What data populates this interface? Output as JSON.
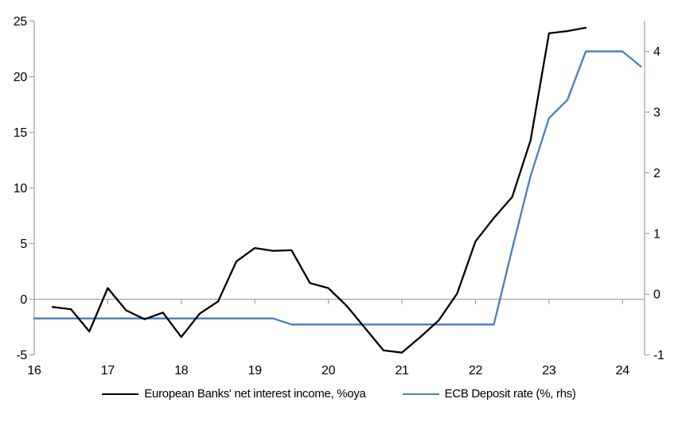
{
  "chart_data": {
    "type": "line",
    "legend_position": "bottom",
    "grid": "zero-line-only",
    "colors": {
      "axis": "#A6A6A6",
      "text": "#000000"
    },
    "x_axis": {
      "min": 16,
      "max": 24.3,
      "ticks": [
        16,
        17,
        18,
        19,
        20,
        21,
        22,
        23,
        24
      ]
    },
    "left_axis": {
      "min": -5,
      "max": 25,
      "ticks": [
        -5,
        0,
        5,
        10,
        15,
        20,
        25
      ]
    },
    "right_axis": {
      "min": -1,
      "max": 4.5,
      "ticks": [
        -1,
        0,
        1,
        2,
        3,
        4
      ]
    },
    "series": [
      {
        "id": "nii",
        "name": "European Banks' net interest income, %oya",
        "axis": "left",
        "color": "#000000",
        "points": [
          [
            16.25,
            -0.7
          ],
          [
            16.5,
            -0.9
          ],
          [
            16.75,
            -2.9
          ],
          [
            17.0,
            1.0
          ],
          [
            17.25,
            -1.0
          ],
          [
            17.5,
            -1.8
          ],
          [
            17.75,
            -1.2
          ],
          [
            18.0,
            -3.4
          ],
          [
            18.25,
            -1.3
          ],
          [
            18.5,
            -0.2
          ],
          [
            18.75,
            3.4
          ],
          [
            19.0,
            4.6
          ],
          [
            19.25,
            4.35
          ],
          [
            19.5,
            4.4
          ],
          [
            19.75,
            1.45
          ],
          [
            20.0,
            1.0
          ],
          [
            20.25,
            -0.6
          ],
          [
            20.5,
            -2.6
          ],
          [
            20.75,
            -4.6
          ],
          [
            21.0,
            -4.8
          ],
          [
            21.25,
            -3.4
          ],
          [
            21.5,
            -1.9
          ],
          [
            21.75,
            0.5
          ],
          [
            22.0,
            5.2
          ],
          [
            22.25,
            7.3
          ],
          [
            22.5,
            9.2
          ],
          [
            22.75,
            14.3
          ],
          [
            23.0,
            23.9
          ],
          [
            23.25,
            24.1
          ],
          [
            23.5,
            24.4
          ]
        ]
      },
      {
        "id": "ecb-deposit-rate",
        "name": "ECB Deposit rate (%, rhs)",
        "axis": "right",
        "color": "#4A7EBB",
        "points": [
          [
            16.0,
            -0.4
          ],
          [
            16.25,
            -0.4
          ],
          [
            16.5,
            -0.4
          ],
          [
            16.75,
            -0.4
          ],
          [
            17.0,
            -0.4
          ],
          [
            17.25,
            -0.4
          ],
          [
            17.5,
            -0.4
          ],
          [
            17.75,
            -0.4
          ],
          [
            18.0,
            -0.4
          ],
          [
            18.25,
            -0.4
          ],
          [
            18.5,
            -0.4
          ],
          [
            18.75,
            -0.4
          ],
          [
            19.0,
            -0.4
          ],
          [
            19.25,
            -0.4
          ],
          [
            19.5,
            -0.5
          ],
          [
            19.75,
            -0.5
          ],
          [
            20.0,
            -0.5
          ],
          [
            20.25,
            -0.5
          ],
          [
            20.5,
            -0.5
          ],
          [
            20.75,
            -0.5
          ],
          [
            21.0,
            -0.5
          ],
          [
            21.25,
            -0.5
          ],
          [
            21.5,
            -0.5
          ],
          [
            21.75,
            -0.5
          ],
          [
            22.0,
            -0.5
          ],
          [
            22.25,
            -0.5
          ],
          [
            22.5,
            0.75
          ],
          [
            22.75,
            1.95
          ],
          [
            23.0,
            2.9
          ],
          [
            23.25,
            3.2
          ],
          [
            23.5,
            4.0
          ],
          [
            23.75,
            4.0
          ],
          [
            24.0,
            4.0
          ],
          [
            24.25,
            3.75
          ]
        ]
      }
    ]
  }
}
